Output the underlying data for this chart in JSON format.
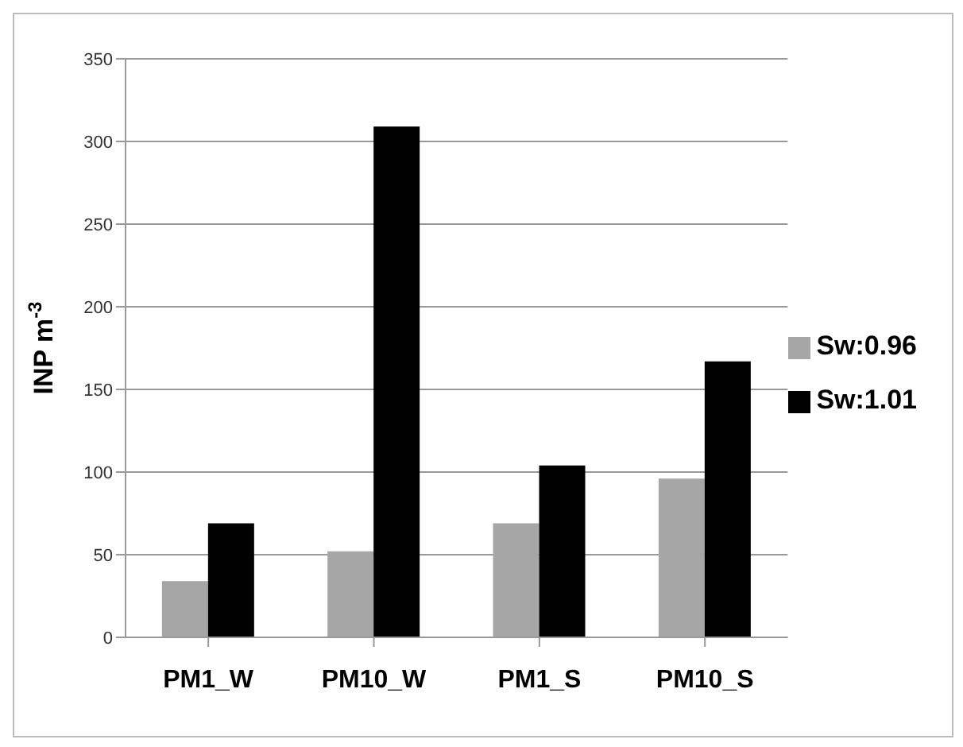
{
  "chart_data": {
    "type": "bar",
    "ylabel": "INP m$^{-3}$",
    "categories": [
      "PM1_W",
      "PM10_W",
      "PM1_S",
      "PM10_S"
    ],
    "series": [
      {
        "name": "Sw:0.96",
        "color": "#a6a6a6",
        "values": [
          34,
          52,
          69,
          96
        ]
      },
      {
        "name": "Sw:1.01",
        "color": "#000000",
        "values": [
          69,
          309,
          104,
          167
        ]
      }
    ],
    "ylim": [
      0,
      350
    ],
    "yticks": [
      0,
      50,
      100,
      150,
      200,
      250,
      300,
      350
    ],
    "grid": "y",
    "legend": "right"
  }
}
